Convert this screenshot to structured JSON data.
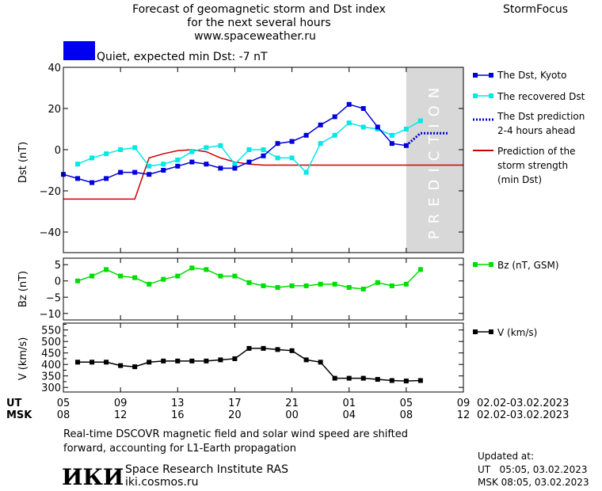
{
  "header": {
    "title_line1": "Forecast of geomagnetic storm and Dst index",
    "title_line2": "for the next several hours",
    "url": "www.spaceweather.ru",
    "brand": "StormFocus",
    "status_text": "Quiet, expected min Dst: -7 nT",
    "status_color": "#0000ee"
  },
  "legend": {
    "dst_kyoto": "The Dst, Kyoto",
    "dst_recovered": "The recovered Dst",
    "dst_prediction_1": "The Dst prediction",
    "dst_prediction_2": "2-4 hours ahead",
    "storm_1": "Prediction of the",
    "storm_2": "storm strength",
    "storm_3": "(min Dst)",
    "bz": "Bz (nT, GSM)",
    "v": "V (km/s)"
  },
  "prediction_label": "PREDICTION",
  "time_axis": {
    "ut_label": "UT",
    "msk_label": "MSK",
    "ut_ticks": [
      "05",
      "09",
      "13",
      "17",
      "21",
      "01",
      "05",
      "09"
    ],
    "msk_ticks": [
      "08",
      "12",
      "16",
      "20",
      "00",
      "04",
      "08",
      "12"
    ],
    "ut_range": "02.02-03.02.2023",
    "msk_range": "02.02-03.02.2023"
  },
  "footer": {
    "note_line1": "Real-time DSCOVR magnetic field and solar wind speed are shifted",
    "note_line2": "forward, accounting for L1-Earth propagation",
    "logo_text": "ИКИ",
    "institute": "Space Research Institute RAS",
    "site": "iki.cosmos.ru",
    "updated_label": "Updated at:",
    "updated_ut": "UT   05:05, 03.02.2023",
    "updated_msk": "MSK 08:05, 03.02.2023"
  },
  "colors": {
    "kyoto": "#0000dd",
    "recovered": "#00e8e8",
    "prediction": "#0000dd",
    "storm": "#cc0000",
    "bz": "#00dd00",
    "v": "#000000",
    "prediction_band": "#d8d8d8"
  },
  "chart_data": [
    {
      "type": "line",
      "ylabel": "Dst (nT)",
      "xlim": [
        0,
        28
      ],
      "ylim": [
        -50,
        40
      ],
      "yticks": [
        40,
        20,
        0,
        -20,
        -40
      ],
      "prediction_band": [
        24,
        28
      ],
      "series": [
        {
          "name": "The Dst, Kyoto",
          "x": [
            0,
            1,
            2,
            3,
            4,
            5,
            6,
            7,
            8,
            9,
            10,
            11,
            12,
            13,
            14,
            15,
            16,
            17,
            18,
            19,
            20,
            21,
            22,
            23,
            24
          ],
          "values": [
            -12,
            -14,
            -16,
            -14,
            -11,
            -11,
            -12,
            -10,
            -8,
            -6,
            -7,
            -9,
            -9,
            -6,
            -3,
            3,
            4,
            7,
            12,
            16,
            22,
            20,
            11,
            3,
            2
          ]
        },
        {
          "name": "The recovered Dst",
          "x": [
            1,
            2,
            3,
            4,
            5,
            6,
            7,
            8,
            9,
            10,
            11,
            12,
            13,
            14,
            15,
            16,
            17,
            18,
            19,
            20,
            21,
            22,
            23,
            24,
            25
          ],
          "values": [
            -7,
            -4,
            -2,
            0,
            1,
            -8,
            -7,
            -5,
            -1,
            1,
            2,
            -7,
            0,
            0,
            -4,
            -4,
            -11,
            3,
            7,
            13,
            11,
            10,
            7,
            10,
            14
          ]
        },
        {
          "name": "The Dst prediction 2-4 hours ahead",
          "x": [
            24,
            24.5,
            25,
            26,
            27
          ],
          "values": [
            2,
            5,
            8,
            8,
            8
          ]
        },
        {
          "name": "Prediction of the storm strength (min Dst)",
          "x": [
            0,
            5,
            6,
            7,
            8,
            9,
            10,
            11,
            12,
            13,
            14,
            28
          ],
          "values": [
            -24,
            -24,
            -4,
            -2,
            -0.5,
            0,
            -1,
            -4,
            -6,
            -7,
            -7.5,
            -7.5
          ]
        }
      ]
    },
    {
      "type": "line",
      "ylabel": "Bz (nT)",
      "ylim": [
        -12,
        7
      ],
      "yticks": [
        5,
        0,
        -5,
        -10
      ],
      "series": [
        {
          "name": "Bz (nT, GSM)",
          "x": [
            1,
            2,
            3,
            4,
            5,
            6,
            7,
            8,
            9,
            10,
            11,
            12,
            13,
            14,
            15,
            16,
            17,
            18,
            19,
            20,
            21,
            22,
            23,
            24,
            25
          ],
          "values": [
            0,
            1.5,
            3.5,
            1.5,
            1,
            -1,
            0.5,
            1.5,
            4,
            3.5,
            1.5,
            1.5,
            -0.5,
            -1.5,
            -2,
            -1.5,
            -1.5,
            -1,
            -1,
            -2,
            -2.5,
            -0.5,
            -1.5,
            -1,
            3.5
          ]
        }
      ]
    },
    {
      "type": "line",
      "ylabel": "V (km/s)",
      "ylim": [
        280,
        580
      ],
      "yticks": [
        550,
        500,
        450,
        400,
        350,
        300
      ],
      "extra_ticks": [
        575,
        525,
        475,
        425,
        375,
        325
      ],
      "series": [
        {
          "name": "V (km/s)",
          "x": [
            1,
            2,
            3,
            4,
            5,
            6,
            7,
            8,
            9,
            10,
            11,
            12,
            13,
            14,
            15,
            16,
            17,
            18,
            19,
            20,
            21,
            22,
            23,
            24,
            25
          ],
          "values": [
            410,
            410,
            410,
            395,
            390,
            410,
            415,
            415,
            415,
            415,
            420,
            425,
            470,
            470,
            465,
            460,
            420,
            410,
            340,
            340,
            340,
            335,
            330,
            328,
            330
          ]
        }
      ]
    }
  ]
}
